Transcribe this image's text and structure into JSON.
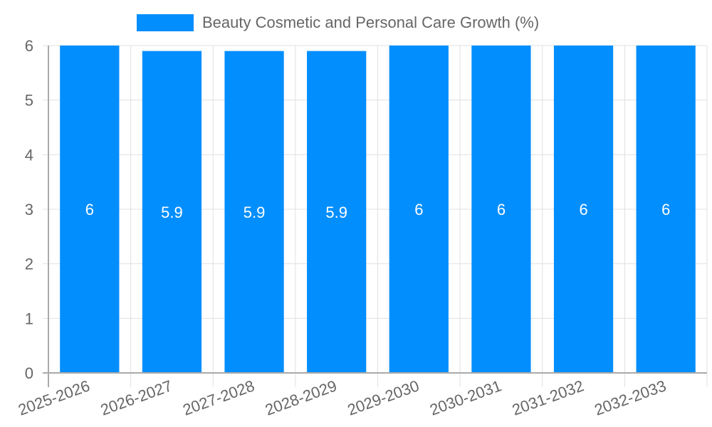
{
  "legend": {
    "label": "Beauty Cosmetic and Personal Care Growth (%)"
  },
  "colors": {
    "bar": "#038efd",
    "grid": "#e0e0e0",
    "axis": "#aaaaaa",
    "tick_text": "#666666",
    "bar_label": "#ffffff"
  },
  "chart_data": {
    "type": "bar",
    "title": "",
    "xlabel": "",
    "ylabel": "",
    "categories": [
      "2025-2026",
      "2026-2027",
      "2027-2028",
      "2028-2029",
      "2029-2030",
      "2030-2031",
      "2031-2032",
      "2032-2033"
    ],
    "series": [
      {
        "name": "Beauty Cosmetic and Personal Care Growth (%)",
        "values": [
          6,
          5.9,
          5.9,
          5.9,
          6,
          6,
          6,
          6
        ]
      }
    ],
    "ylim": [
      0,
      6
    ],
    "yticks": [
      0,
      1,
      2,
      3,
      4,
      5,
      6
    ],
    "grid": true,
    "legend_position": "top",
    "data_labels": true
  }
}
